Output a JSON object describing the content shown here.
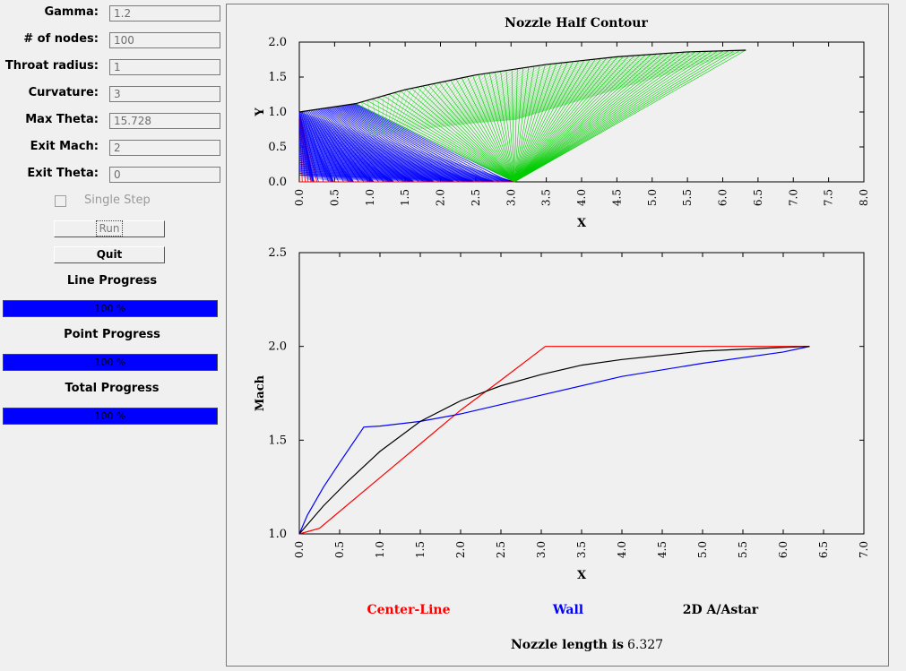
{
  "inputs": [
    {
      "label": "Gamma:",
      "value": "1.2"
    },
    {
      "label": "# of nodes:",
      "value": "100"
    },
    {
      "label": "Throat radius:",
      "value": "1"
    },
    {
      "label": "Curvature:",
      "value": "3"
    },
    {
      "label": "Max Theta:",
      "value": "15.728"
    },
    {
      "label": "Exit Mach:",
      "value": "2"
    },
    {
      "label": "Exit Theta:",
      "value": "0"
    }
  ],
  "single_step_label": "Single Step",
  "run_label": "Run",
  "quit_label": "Quit",
  "progress": [
    {
      "title": "Line Progress",
      "text": "100 %",
      "value": 100
    },
    {
      "title": "Point Progress",
      "text": "100 %",
      "value": 100
    },
    {
      "title": "Total Progress",
      "text": "100 %",
      "value": 100
    }
  ],
  "colors": {
    "center_line": "#ff0000",
    "wall": "#0000ff",
    "area_ratio": "#000000",
    "expansion_mesh": "#00cc00",
    "progress_fill": "#0000ff"
  },
  "footer": {
    "label": "Nozzle length is",
    "value": "6.327"
  },
  "chart_data": [
    {
      "type": "line",
      "title": "Nozzle Half Contour",
      "xlabel": "X",
      "ylabel": "Y",
      "xlim": [
        0,
        8
      ],
      "ylim": [
        0,
        2
      ],
      "x_ticks": [
        "0.0",
        "0.5",
        "1.0",
        "1.5",
        "2.0",
        "2.5",
        "3.0",
        "3.5",
        "4.0",
        "4.5",
        "5.0",
        "5.5",
        "6.0",
        "6.5",
        "7.0",
        "7.5",
        "8.0"
      ],
      "y_ticks": [
        "0.0",
        "0.5",
        "1.0",
        "1.5",
        "2.0"
      ],
      "series": [
        {
          "color": "#000000",
          "x": [
            0,
            0.8,
            1.5,
            2.5,
            3.5,
            4.5,
            5.5,
            6.327
          ],
          "y": [
            1.0,
            1.12,
            1.32,
            1.53,
            1.68,
            1.79,
            1.86,
            1.885
          ]
        }
      ],
      "mesh": {
        "expansion_fan": {
          "color": "#0000ff",
          "origin_x_range": [
            0,
            0.8
          ],
          "end_x_range": [
            0.2,
            3.05
          ]
        },
        "simple_wave": {
          "color": "#00cc00",
          "axis_point_x": 3.05,
          "wall_x_range": [
            0.8,
            6.327
          ]
        },
        "throat": {
          "color": "#ff0000",
          "x_range": [
            0,
            0.25
          ]
        }
      }
    },
    {
      "type": "line",
      "title": "",
      "xlabel": "X",
      "ylabel": "Mach",
      "xlim": [
        0,
        7
      ],
      "ylim": [
        1,
        2.5
      ],
      "x_ticks": [
        "0.0",
        "0.5",
        "1.0",
        "1.5",
        "2.0",
        "2.5",
        "3.0",
        "3.5",
        "4.0",
        "4.5",
        "5.0",
        "5.5",
        "6.0",
        "6.5",
        "7.0"
      ],
      "y_ticks": [
        "1.0",
        "1.5",
        "2.0",
        "2.5"
      ],
      "series": [
        {
          "name": "Center-Line",
          "color": "#ff0000",
          "x": [
            0,
            0.25,
            0.5,
            1.0,
            1.5,
            2.0,
            2.5,
            3.05,
            3.1,
            6.327
          ],
          "y": [
            1.0,
            1.03,
            1.12,
            1.3,
            1.48,
            1.66,
            1.82,
            2.0,
            2.0,
            2.0
          ]
        },
        {
          "name": "Wall",
          "color": "#0000ff",
          "x": [
            0,
            0.1,
            0.3,
            0.5,
            0.8,
            1.0,
            1.5,
            2.0,
            3.0,
            4.0,
            5.0,
            6.0,
            6.327
          ],
          "y": [
            1.0,
            1.1,
            1.25,
            1.38,
            1.57,
            1.575,
            1.6,
            1.64,
            1.74,
            1.84,
            1.91,
            1.97,
            2.0
          ]
        },
        {
          "name": "2D A/Astar",
          "color": "#000000",
          "x": [
            0,
            0.3,
            0.6,
            1.0,
            1.5,
            2.0,
            2.5,
            3.0,
            3.5,
            4.0,
            5.0,
            6.0,
            6.327
          ],
          "y": [
            1.0,
            1.15,
            1.28,
            1.44,
            1.6,
            1.71,
            1.79,
            1.85,
            1.9,
            1.93,
            1.975,
            1.995,
            2.0
          ]
        }
      ]
    }
  ]
}
